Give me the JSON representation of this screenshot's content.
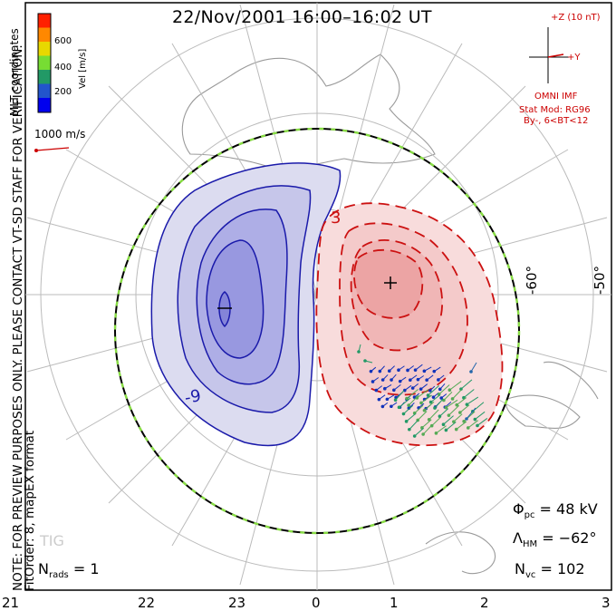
{
  "title": "22/Nov/2001 16:00–16:02 UT",
  "side_note": {
    "line1": "NOTE: FOR PREVIEW PURPOSES ONLY. PLEASE CONTACT VT-SD STAFF FOR VERIFICATION.",
    "line2": "FitOrder: 8, mapEX format"
  },
  "coord_label": "MLT coordinates",
  "colorbar": {
    "title": "Vel [m/s]",
    "ticks": [
      "600",
      "400",
      "200"
    ],
    "colors": [
      "#ff2000",
      "#ff8800",
      "#e8d800",
      "#77dd33",
      "#229966",
      "#2255cc",
      "#0000ee"
    ]
  },
  "vector_scale": "1000 m/s",
  "imf": {
    "bz": "+Z (10 nT)",
    "by": "+Y",
    "source": "OMNI IMF",
    "model": "Stat Mod: RG96",
    "condition": "By-, 6<BT<12"
  },
  "lat_labels": [
    "-60°",
    "-50°"
  ],
  "contour_labels": [
    "3",
    "-9"
  ],
  "mlt_labels": [
    "21",
    "22",
    "23",
    "0",
    "1",
    "2",
    "3"
  ],
  "stats": {
    "phi_sym": "Φ",
    "phi_sub": "pc",
    "phi_val": " = 48 kV",
    "lambda_sym": "Λ",
    "lambda_sub": "HM",
    "lambda_val": " = −62°",
    "nvc_sym": "N",
    "nvc_sub": "vc",
    "nvc_val": " = 102",
    "nrads_sym": "N",
    "nrads_sub": "rads",
    "nrads_val": " = 1"
  },
  "watermark": "TIG",
  "colors": {
    "negative_cell": "#1a1aaa",
    "positive_cell": "#cc1111",
    "boundary_dash": "#88dd44",
    "grid": "#bbbbbb"
  }
}
